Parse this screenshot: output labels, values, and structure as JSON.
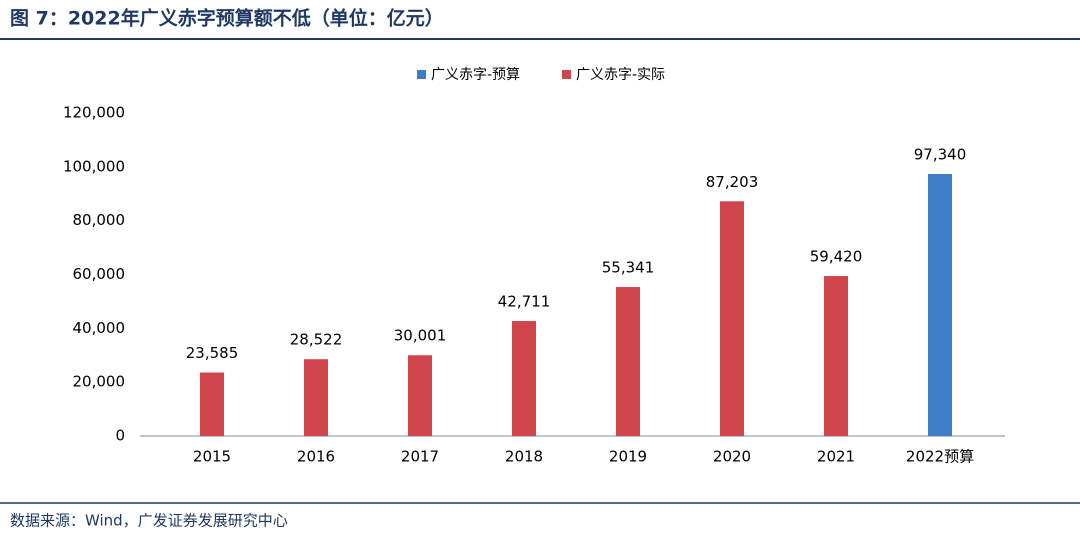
{
  "chart_data": {
    "type": "bar",
    "title": "图 7：2022年广义赤字预算额不低（单位：亿元）",
    "source": "数据来源：Wind，广发证券发展研究中心",
    "categories": [
      "2015",
      "2016",
      "2017",
      "2018",
      "2019",
      "2020",
      "2021",
      "2022预算"
    ],
    "series": [
      {
        "name": "广义赤字-预算",
        "color": "#3b7ec6",
        "values": [
          null,
          null,
          null,
          null,
          null,
          null,
          null,
          97340
        ],
        "value_labels": [
          null,
          null,
          null,
          null,
          null,
          null,
          null,
          "97,340"
        ]
      },
      {
        "name": "广义赤字-实际",
        "color": "#d0454c",
        "values": [
          23585,
          28522,
          30001,
          42711,
          55341,
          87203,
          59420,
          null
        ],
        "value_labels": [
          "23,585",
          "28,522",
          "30,001",
          "42,711",
          "55,341",
          "87,203",
          "59,420",
          null
        ]
      }
    ],
    "ylim": [
      0,
      120000
    ],
    "yticks": [
      0,
      {
        "value": 20000,
        "label": "20,000"
      },
      {
        "value": 40000,
        "label": "40,000"
      },
      {
        "value": 60000,
        "label": "60,000"
      },
      {
        "value": 80000,
        "label": "80,000"
      },
      {
        "value": 100000,
        "label": "100,000"
      },
      {
        "value": 120000,
        "label": "120,000"
      }
    ],
    "grid": false,
    "legend": "top"
  }
}
